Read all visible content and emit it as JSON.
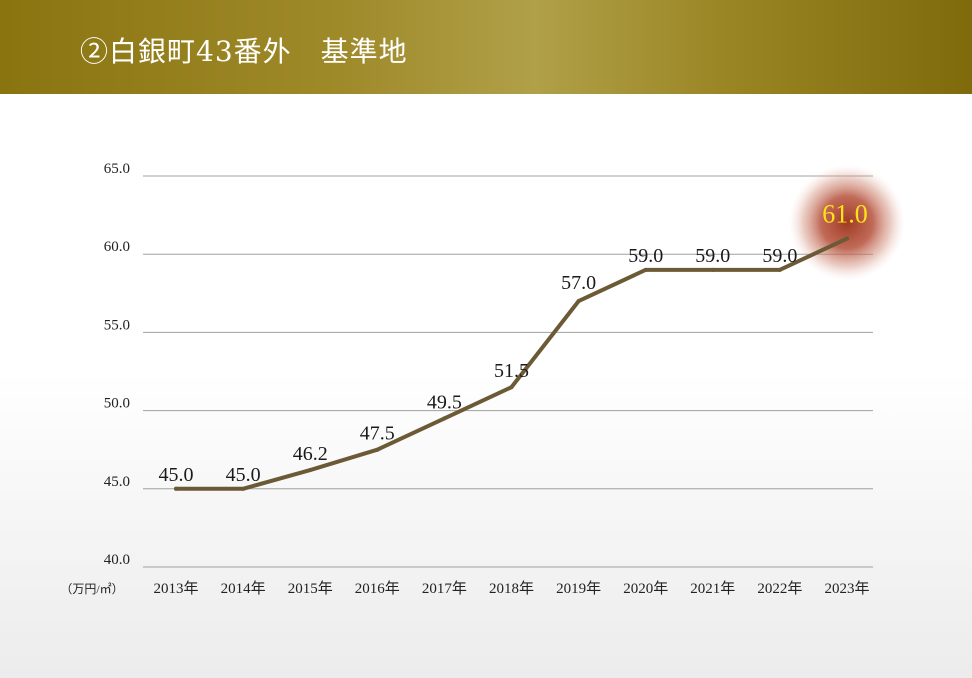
{
  "header": {
    "title": "②白銀町43番外　基準地"
  },
  "colors": {
    "header_left": "#8a7410",
    "header_mid": "#b0a048",
    "line": "#6b5a35",
    "grid": "#a0a0a0",
    "highlight_glow": "#b5503a",
    "highlight_text": "#ffe21a"
  },
  "chart_data": {
    "type": "line",
    "unit_label": "（万円/㎡）",
    "categories": [
      "2013年",
      "2014年",
      "2015年",
      "2016年",
      "2017年",
      "2018年",
      "2019年",
      "2020年",
      "2021年",
      "2022年",
      "2023年"
    ],
    "values": [
      45.0,
      45.0,
      46.2,
      47.5,
      49.5,
      51.5,
      57.0,
      59.0,
      59.0,
      59.0,
      61.0
    ],
    "data_labels": [
      "45.0",
      "45.0",
      "46.2",
      "47.5",
      "49.5",
      "51.5",
      "57.0",
      "59.0",
      "59.0",
      "59.0",
      "61.0"
    ],
    "highlight_index": 10,
    "ylim": [
      40.0,
      65.0
    ],
    "yticks": [
      "40.0",
      "45.0",
      "50.0",
      "55.0",
      "60.0",
      "65.0"
    ],
    "grid": true,
    "legend": "none"
  }
}
